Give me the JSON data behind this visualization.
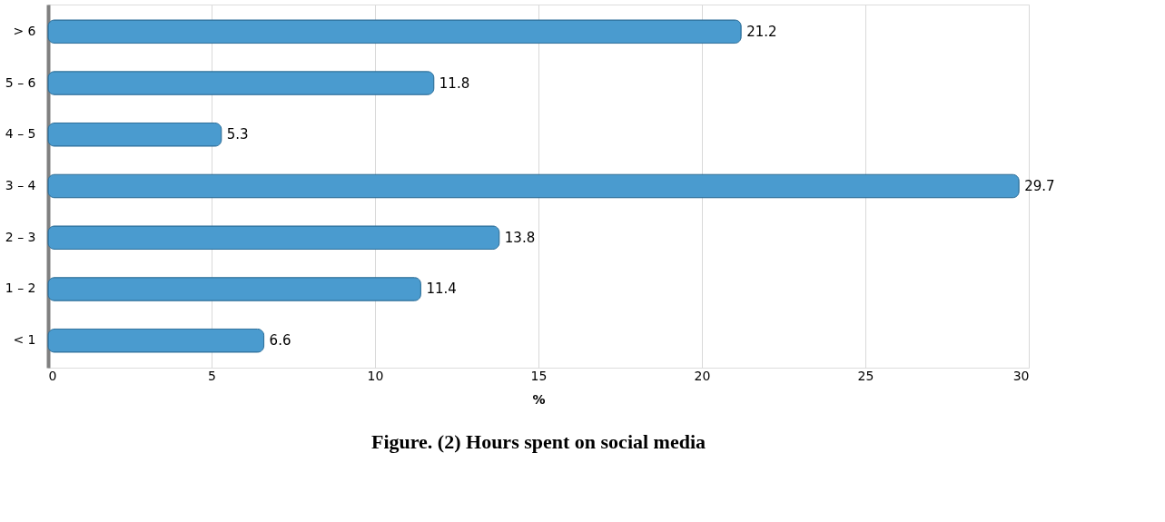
{
  "chart_data": {
    "type": "bar",
    "orientation": "horizontal",
    "title": "Figure. (2) Hours spent on social media",
    "xlabel": "%",
    "categories": [
      "> 6",
      "5 – 6",
      "4 – 5",
      "3 – 4",
      "2 – 3",
      "1 – 2",
      "< 1"
    ],
    "values": [
      21.2,
      11.8,
      5.3,
      29.7,
      13.8,
      11.4,
      6.6
    ],
    "color": "#4a9bcf",
    "xlim": [
      0,
      30
    ],
    "xticks": [
      0,
      5,
      10,
      15,
      20,
      25,
      30
    ],
    "grid": "x",
    "data_labels": true
  }
}
